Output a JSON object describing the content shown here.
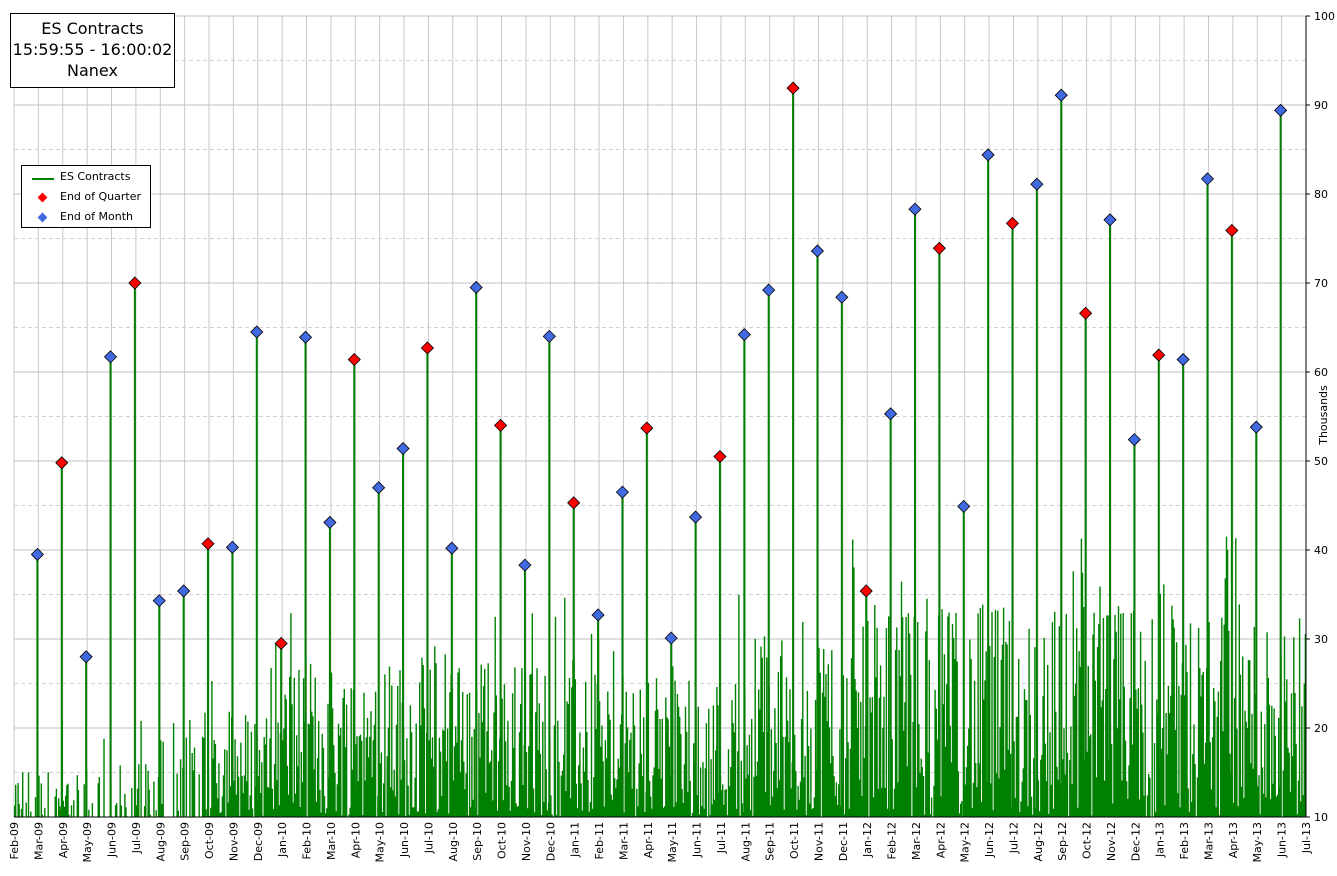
{
  "chart_data": {
    "type": "bar",
    "title": [
      "ES Contracts",
      "15:59:55 - 16:00:02",
      "Nanex"
    ],
    "ylabel": "Thousands",
    "ylim": [
      10,
      100
    ],
    "y_ticks": [
      10,
      20,
      30,
      40,
      50,
      60,
      70,
      80,
      90,
      100
    ],
    "x_ticks": [
      "Feb-09",
      "Mar-09",
      "Apr-09",
      "May-09",
      "Jun-09",
      "Jul-09",
      "Aug-09",
      "Sep-09",
      "Oct-09",
      "Nov-09",
      "Dec-09",
      "Jan-10",
      "Feb-10",
      "Mar-10",
      "Apr-10",
      "May-10",
      "Jun-10",
      "Jul-10",
      "Aug-10",
      "Sep-10",
      "Oct-10",
      "Nov-10",
      "Dec-10",
      "Jan-11",
      "Feb-11",
      "Mar-11",
      "Apr-11",
      "May-11",
      "Jun-11",
      "Jul-11",
      "Aug-11",
      "Sep-11",
      "Oct-11",
      "Nov-11",
      "Dec-11",
      "Jan-12",
      "Feb-12",
      "Mar-12",
      "Apr-12",
      "May-12",
      "Jun-12",
      "Jul-12",
      "Aug-12",
      "Sep-12",
      "Oct-12",
      "Nov-12",
      "Dec-12",
      "Jan-13",
      "Feb-13",
      "Mar-13",
      "Apr-13",
      "May-13",
      "Jun-13",
      "Jul-13"
    ],
    "grid": true,
    "legend": {
      "placement": "left",
      "items": [
        {
          "label": "ES Contracts",
          "kind": "line",
          "color": "#008000"
        },
        {
          "label": "End of Quarter",
          "kind": "diamond",
          "color": "#ff0000"
        },
        {
          "label": "End of Month",
          "kind": "diamond",
          "color": "#4169e1"
        }
      ]
    },
    "series": [
      {
        "name": "End of Month",
        "color": "#4169e1",
        "points": [
          {
            "month": "Feb-09",
            "value": 39.5
          },
          {
            "month": "Apr-09",
            "value": 28.0
          },
          {
            "month": "May-09",
            "value": 61.7
          },
          {
            "month": "Jul-09",
            "value": 34.3
          },
          {
            "month": "Aug-09",
            "value": 35.4
          },
          {
            "month": "Oct-09",
            "value": 40.3
          },
          {
            "month": "Nov-09",
            "value": 64.5
          },
          {
            "month": "Jan-10",
            "value": 63.9
          },
          {
            "month": "Feb-10",
            "value": 43.1
          },
          {
            "month": "Apr-10",
            "value": 47.0
          },
          {
            "month": "May-10",
            "value": 51.4
          },
          {
            "month": "Jul-10",
            "value": 40.2
          },
          {
            "month": "Aug-10",
            "value": 69.5
          },
          {
            "month": "Oct-10",
            "value": 38.3
          },
          {
            "month": "Nov-10",
            "value": 64.0
          },
          {
            "month": "Jan-11",
            "value": 32.7
          },
          {
            "month": "Feb-11",
            "value": 46.5
          },
          {
            "month": "Apr-11",
            "value": 30.1
          },
          {
            "month": "May-11",
            "value": 43.7
          },
          {
            "month": "Jul-11",
            "value": 64.2
          },
          {
            "month": "Aug-11",
            "value": 69.2
          },
          {
            "month": "Oct-11",
            "value": 73.6
          },
          {
            "month": "Nov-11",
            "value": 68.4
          },
          {
            "month": "Jan-12",
            "value": 55.3
          },
          {
            "month": "Feb-12",
            "value": 78.3
          },
          {
            "month": "Apr-12",
            "value": 44.9
          },
          {
            "month": "May-12",
            "value": 84.4
          },
          {
            "month": "Jul-12",
            "value": 81.1
          },
          {
            "month": "Aug-12",
            "value": 91.1
          },
          {
            "month": "Oct-12",
            "value": 77.1
          },
          {
            "month": "Nov-12",
            "value": 52.4
          },
          {
            "month": "Jan-13",
            "value": 61.4
          },
          {
            "month": "Feb-13",
            "value": 81.7
          },
          {
            "month": "Apr-13",
            "value": 53.8
          },
          {
            "month": "May-13",
            "value": 89.4
          }
        ]
      },
      {
        "name": "End of Quarter",
        "color": "#ff0000",
        "points": [
          {
            "month": "Mar-09",
            "value": 49.8
          },
          {
            "month": "Jun-09",
            "value": 70.0
          },
          {
            "month": "Sep-09",
            "value": 40.7
          },
          {
            "month": "Dec-09",
            "value": 29.5
          },
          {
            "month": "Mar-10",
            "value": 61.4
          },
          {
            "month": "Jun-10",
            "value": 62.7
          },
          {
            "month": "Sep-10",
            "value": 54.0
          },
          {
            "month": "Dec-10",
            "value": 45.3
          },
          {
            "month": "Mar-11",
            "value": 53.7
          },
          {
            "month": "Jun-11",
            "value": 50.5
          },
          {
            "month": "Sep-11",
            "value": 91.9
          },
          {
            "month": "Dec-11",
            "value": 35.4
          },
          {
            "month": "Mar-12",
            "value": 73.9
          },
          {
            "month": "Jun-12",
            "value": 76.7
          },
          {
            "month": "Sep-12",
            "value": 66.6
          },
          {
            "month": "Dec-12",
            "value": 61.9
          },
          {
            "month": "Mar-13",
            "value": 75.9
          }
        ]
      }
    ],
    "daily_noise_profile": [
      {
        "period": "Feb-09..Jul-09",
        "typical_max": 12
      },
      {
        "period": "Aug-09..Dec-09",
        "typical_max": 18
      },
      {
        "period": "Jan-10..Dec-10",
        "typical_max": 24
      },
      {
        "period": "Jan-11..Jul-11",
        "typical_max": 22
      },
      {
        "period": "Aug-11..Dec-11",
        "typical_max": 28
      },
      {
        "period": "Jan-12..Jun-13",
        "typical_max": 30
      }
    ]
  }
}
